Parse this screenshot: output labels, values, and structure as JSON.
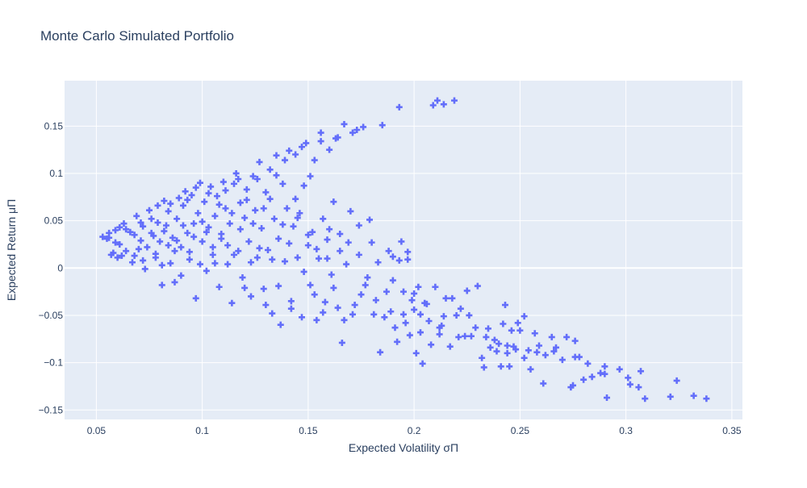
{
  "chart_data": {
    "type": "scatter",
    "title": "Monte Carlo Simulated Portfolio",
    "xlabel": "Expected Volatility σΠ",
    "ylabel": "Expected Return μΠ",
    "xlim": [
      0.035,
      0.355
    ],
    "ylim": [
      -0.16,
      0.198
    ],
    "xticks": [
      0.05,
      0.1,
      0.15,
      0.2,
      0.25,
      0.3,
      0.35
    ],
    "xtick_labels": [
      "0.05",
      "0.1",
      "0.15",
      "0.2",
      "0.25",
      "0.3",
      "0.35"
    ],
    "yticks": [
      -0.15,
      -0.1,
      -0.05,
      0,
      0.05,
      0.1,
      0.15
    ],
    "ytick_labels": [
      "−0.15",
      "−0.1",
      "−0.05",
      "0",
      "0.05",
      "0.1",
      "0.15"
    ],
    "grid": true,
    "marker": "cross",
    "marker_color": "#636efa",
    "plot_bgcolor": "#e5ecf6",
    "points": [
      [
        0.053,
        0.033
      ],
      [
        0.055,
        0.031
      ],
      [
        0.056,
        0.037
      ],
      [
        0.057,
        0.014
      ],
      [
        0.058,
        0.016
      ],
      [
        0.059,
        0.04
      ],
      [
        0.06,
        0.011
      ],
      [
        0.061,
        0.025
      ],
      [
        0.062,
        0.013
      ],
      [
        0.063,
        0.047
      ],
      [
        0.064,
        0.041
      ],
      [
        0.066,
        0.038
      ],
      [
        0.068,
        0.013
      ],
      [
        0.069,
        0.055
      ],
      [
        0.07,
        0.02
      ],
      [
        0.071,
        0.029
      ],
      [
        0.072,
        0.044
      ],
      [
        0.073,
        -0.001
      ],
      [
        0.075,
        0.061
      ],
      [
        0.076,
        0.052
      ],
      [
        0.077,
        0.034
      ],
      [
        0.078,
        0.011
      ],
      [
        0.079,
        0.066
      ],
      [
        0.08,
        0.028
      ],
      [
        0.081,
        -0.018
      ],
      [
        0.082,
        0.071
      ],
      [
        0.083,
        0.045
      ],
      [
        0.084,
        0.06
      ],
      [
        0.085,
        0.005
      ],
      [
        0.086,
        0.032
      ],
      [
        0.087,
        -0.015
      ],
      [
        0.088,
        0.052
      ],
      [
        0.089,
        0.074
      ],
      [
        0.09,
        0.022
      ],
      [
        0.091,
        0.066
      ],
      [
        0.092,
        0.081
      ],
      [
        0.093,
        0.037
      ],
      [
        0.094,
        0.009
      ],
      [
        0.095,
        0.077
      ],
      [
        0.096,
        0.047
      ],
      [
        0.097,
        -0.032
      ],
      [
        0.098,
        0.058
      ],
      [
        0.099,
        0.09
      ],
      [
        0.1,
        0.028
      ],
      [
        0.101,
        0.07
      ],
      [
        0.102,
        -0.003
      ],
      [
        0.103,
        0.043
      ],
      [
        0.104,
        0.086
      ],
      [
        0.105,
        0.014
      ],
      [
        0.106,
        0.055
      ],
      [
        0.107,
        0.076
      ],
      [
        0.108,
        -0.02
      ],
      [
        0.109,
        0.031
      ],
      [
        0.11,
        0.091
      ],
      [
        0.111,
        0.063
      ],
      [
        0.112,
        0.004
      ],
      [
        0.113,
        0.047
      ],
      [
        0.114,
        -0.037
      ],
      [
        0.115,
        0.089
      ],
      [
        0.116,
        0.1
      ],
      [
        0.117,
        0.018
      ],
      [
        0.118,
        0.069
      ],
      [
        0.119,
        -0.01
      ],
      [
        0.12,
        0.053
      ],
      [
        0.121,
        0.083
      ],
      [
        0.122,
        0.028
      ],
      [
        0.123,
        -0.03
      ],
      [
        0.124,
        0.097
      ],
      [
        0.125,
        0.061
      ],
      [
        0.126,
        0.011
      ],
      [
        0.127,
        0.112
      ],
      [
        0.128,
        0.042
      ],
      [
        0.129,
        -0.022
      ],
      [
        0.13,
        0.08
      ],
      [
        0.131,
        0.019
      ],
      [
        0.132,
        0.104
      ],
      [
        0.133,
        -0.048
      ],
      [
        0.134,
        0.052
      ],
      [
        0.135,
        0.119
      ],
      [
        0.136,
        0.031
      ],
      [
        0.137,
        -0.06
      ],
      [
        0.138,
        0.089
      ],
      [
        0.139,
        0.007
      ],
      [
        0.14,
        0.063
      ],
      [
        0.141,
        0.124
      ],
      [
        0.142,
        -0.035
      ],
      [
        0.143,
        0.044
      ],
      [
        0.144,
        0.12
      ],
      [
        0.145,
        0.011
      ],
      [
        0.146,
        0.058
      ],
      [
        0.147,
        -0.052
      ],
      [
        0.148,
        0.087
      ],
      [
        0.149,
        0.132
      ],
      [
        0.15,
        0.024
      ],
      [
        0.151,
        -0.018
      ],
      [
        0.152,
        0.038
      ],
      [
        0.153,
        0.114
      ],
      [
        0.154,
        -0.055
      ],
      [
        0.155,
        0.01
      ],
      [
        0.156,
        0.143
      ],
      [
        0.157,
        0.052
      ],
      [
        0.158,
        -0.036
      ],
      [
        0.159,
        0.03
      ],
      [
        0.16,
        0.125
      ],
      [
        0.161,
        -0.007
      ],
      [
        0.162,
        0.07
      ],
      [
        0.163,
        0.137
      ],
      [
        0.164,
        -0.042
      ],
      [
        0.165,
        0.018
      ],
      [
        0.166,
        -0.079
      ],
      [
        0.167,
        0.152
      ],
      [
        0.168,
        0.004
      ],
      [
        0.17,
        0.06
      ],
      [
        0.171,
        -0.049
      ],
      [
        0.173,
        0.146
      ],
      [
        0.174,
        0.014
      ],
      [
        0.175,
        -0.028
      ],
      [
        0.176,
        0.149
      ],
      [
        0.178,
        -0.01
      ],
      [
        0.18,
        0.027
      ],
      [
        0.181,
        -0.049
      ],
      [
        0.183,
        0.006
      ],
      [
        0.184,
        -0.089
      ],
      [
        0.185,
        0.151
      ],
      [
        0.187,
        -0.025
      ],
      [
        0.189,
        -0.046
      ],
      [
        0.19,
        0.012
      ],
      [
        0.191,
        -0.063
      ],
      [
        0.192,
        -0.078
      ],
      [
        0.193,
        0.17
      ],
      [
        0.194,
        0.028
      ],
      [
        0.195,
        -0.025
      ],
      [
        0.196,
        -0.058
      ],
      [
        0.197,
        0.009
      ],
      [
        0.198,
        -0.071
      ],
      [
        0.199,
        -0.034
      ],
      [
        0.2,
        -0.044
      ],
      [
        0.201,
        -0.09
      ],
      [
        0.202,
        -0.02
      ],
      [
        0.203,
        -0.068
      ],
      [
        0.204,
        -0.101
      ],
      [
        0.206,
        -0.038
      ],
      [
        0.207,
        -0.056
      ],
      [
        0.209,
        0.172
      ],
      [
        0.21,
        -0.02
      ],
      [
        0.211,
        0.177
      ],
      [
        0.212,
        -0.07
      ],
      [
        0.213,
        -0.061
      ],
      [
        0.214,
        0.173
      ],
      [
        0.215,
        -0.032
      ],
      [
        0.217,
        -0.083
      ],
      [
        0.219,
        0.177
      ],
      [
        0.22,
        -0.05
      ],
      [
        0.222,
        -0.043
      ],
      [
        0.224,
        -0.072
      ],
      [
        0.225,
        -0.024
      ],
      [
        0.227,
        -0.072
      ],
      [
        0.23,
        -0.019
      ],
      [
        0.232,
        -0.095
      ],
      [
        0.233,
        -0.105
      ],
      [
        0.235,
        -0.064
      ],
      [
        0.236,
        -0.084
      ],
      [
        0.238,
        -0.076
      ],
      [
        0.24,
        -0.08
      ],
      [
        0.241,
        -0.104
      ],
      [
        0.242,
        -0.059
      ],
      [
        0.243,
        -0.039
      ],
      [
        0.244,
        -0.09
      ],
      [
        0.245,
        -0.104
      ],
      [
        0.246,
        -0.066
      ],
      [
        0.247,
        -0.083
      ],
      [
        0.248,
        -0.086
      ],
      [
        0.25,
        -0.066
      ],
      [
        0.252,
        -0.051
      ],
      [
        0.254,
        -0.087
      ],
      [
        0.255,
        -0.107
      ],
      [
        0.257,
        -0.069
      ],
      [
        0.258,
        -0.089
      ],
      [
        0.261,
        -0.122
      ],
      [
        0.262,
        -0.092
      ],
      [
        0.265,
        -0.073
      ],
      [
        0.267,
        -0.084
      ],
      [
        0.27,
        -0.097
      ],
      [
        0.272,
        -0.073
      ],
      [
        0.274,
        -0.126
      ],
      [
        0.276,
        -0.077
      ],
      [
        0.276,
        -0.094
      ],
      [
        0.278,
        -0.094
      ],
      [
        0.28,
        -0.118
      ],
      [
        0.282,
        -0.101
      ],
      [
        0.284,
        -0.115
      ],
      [
        0.288,
        -0.111
      ],
      [
        0.29,
        -0.104
      ],
      [
        0.291,
        -0.137
      ],
      [
        0.297,
        -0.107
      ],
      [
        0.301,
        -0.116
      ],
      [
        0.306,
        -0.126
      ],
      [
        0.307,
        -0.109
      ],
      [
        0.309,
        -0.138
      ],
      [
        0.321,
        -0.136
      ],
      [
        0.324,
        -0.119
      ],
      [
        0.332,
        -0.135
      ],
      [
        0.338,
        -0.138
      ],
      [
        0.056,
        0.032
      ],
      [
        0.059,
        0.027
      ],
      [
        0.061,
        0.043
      ],
      [
        0.064,
        0.018
      ],
      [
        0.067,
        0.006
      ],
      [
        0.068,
        0.035
      ],
      [
        0.071,
        0.048
      ],
      [
        0.072,
        0.008
      ],
      [
        0.074,
        0.022
      ],
      [
        0.076,
        0.037
      ],
      [
        0.078,
        0.015
      ],
      [
        0.079,
        0.048
      ],
      [
        0.081,
        0.003
      ],
      [
        0.082,
        0.039
      ],
      [
        0.084,
        0.024
      ],
      [
        0.085,
        0.068
      ],
      [
        0.087,
        0.018
      ],
      [
        0.088,
        0.029
      ],
      [
        0.09,
        -0.008
      ],
      [
        0.091,
        0.045
      ],
      [
        0.093,
        0.072
      ],
      [
        0.094,
        0.017
      ],
      [
        0.096,
        0.033
      ],
      [
        0.097,
        0.085
      ],
      [
        0.099,
        0.004
      ],
      [
        0.1,
        0.049
      ],
      [
        0.102,
        0.038
      ],
      [
        0.103,
        0.079
      ],
      [
        0.105,
        0.022
      ],
      [
        0.106,
        0.005
      ],
      [
        0.108,
        0.067
      ],
      [
        0.109,
        0.036
      ],
      [
        0.111,
        0.082
      ],
      [
        0.112,
        0.024
      ],
      [
        0.114,
        0.058
      ],
      [
        0.115,
        0.014
      ],
      [
        0.117,
        0.094
      ],
      [
        0.118,
        0.041
      ],
      [
        0.12,
        -0.021
      ],
      [
        0.121,
        0.072
      ],
      [
        0.123,
        0.006
      ],
      [
        0.124,
        0.047
      ],
      [
        0.126,
        0.094
      ],
      [
        0.127,
        0.021
      ],
      [
        0.129,
        0.063
      ],
      [
        0.13,
        -0.039
      ],
      [
        0.132,
        0.073
      ],
      [
        0.133,
        0.009
      ],
      [
        0.135,
        0.098
      ],
      [
        0.136,
        -0.019
      ],
      [
        0.138,
        0.046
      ],
      [
        0.139,
        0.114
      ],
      [
        0.141,
        0.026
      ],
      [
        0.142,
        -0.043
      ],
      [
        0.144,
        0.073
      ],
      [
        0.145,
        0.053
      ],
      [
        0.147,
        0.128
      ],
      [
        0.148,
        -0.004
      ],
      [
        0.15,
        0.035
      ],
      [
        0.151,
        0.097
      ],
      [
        0.153,
        -0.028
      ],
      [
        0.154,
        0.02
      ],
      [
        0.156,
        0.134
      ],
      [
        0.157,
        -0.047
      ],
      [
        0.159,
        0.01
      ],
      [
        0.16,
        0.041
      ],
      [
        0.162,
        -0.021
      ],
      [
        0.164,
        0.138
      ],
      [
        0.165,
        0.036
      ],
      [
        0.167,
        -0.055
      ],
      [
        0.169,
        0.027
      ],
      [
        0.171,
        0.143
      ],
      [
        0.172,
        -0.039
      ],
      [
        0.174,
        0.045
      ],
      [
        0.177,
        -0.018
      ],
      [
        0.179,
        0.051
      ],
      [
        0.182,
        -0.034
      ],
      [
        0.186,
        -0.052
      ],
      [
        0.188,
        0.018
      ],
      [
        0.19,
        -0.013
      ],
      [
        0.193,
        0.008
      ],
      [
        0.195,
        -0.049
      ],
      [
        0.197,
        0.017
      ],
      [
        0.2,
        -0.027
      ],
      [
        0.203,
        -0.049
      ],
      [
        0.205,
        -0.037
      ],
      [
        0.208,
        -0.081
      ],
      [
        0.212,
        -0.063
      ],
      [
        0.214,
        -0.051
      ],
      [
        0.218,
        -0.032
      ],
      [
        0.221,
        -0.073
      ],
      [
        0.226,
        -0.05
      ],
      [
        0.229,
        -0.063
      ],
      [
        0.234,
        -0.073
      ],
      [
        0.239,
        -0.088
      ],
      [
        0.244,
        -0.082
      ],
      [
        0.249,
        -0.058
      ],
      [
        0.252,
        -0.095
      ],
      [
        0.259,
        -0.082
      ],
      [
        0.266,
        -0.088
      ],
      [
        0.275,
        -0.124
      ],
      [
        0.29,
        -0.112
      ],
      [
        0.302,
        -0.123
      ]
    ]
  }
}
